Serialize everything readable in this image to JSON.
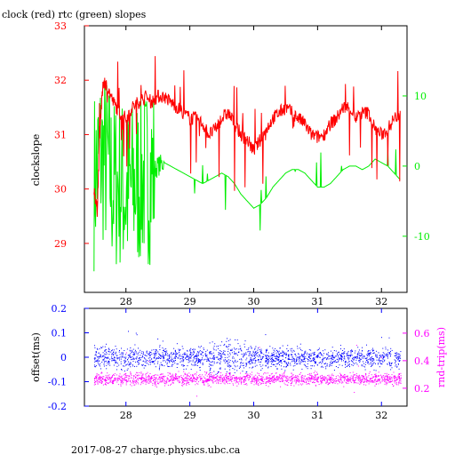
{
  "title": "clock (red) rtc (green) slopes",
  "footer": "2017-08-27 charge.physics.ubc.ca",
  "colors": {
    "red": "#ff0000",
    "green": "#00ee00",
    "blue": "#0000ff",
    "magenta": "#ff00ff",
    "axis": "#000000"
  },
  "chart_data": [
    {
      "type": "line",
      "title": "clock (red) rtc (green) slopes",
      "ylabel": "clockslope",
      "xlim": [
        27.35,
        32.4
      ],
      "ylim": [
        28.1,
        33
      ],
      "y2lim": [
        -18,
        20
      ],
      "x_ticks": [
        28,
        29,
        30,
        31,
        32
      ],
      "y_ticks": [
        29,
        30,
        31,
        32,
        33
      ],
      "y2_ticks": [
        -10,
        0,
        10
      ],
      "series": [
        {
          "name": "clock (red)",
          "axis": "left",
          "color": "#ff0000",
          "x": [
            27.5,
            27.55,
            27.6,
            27.65,
            27.7,
            27.8,
            27.9,
            28.0,
            28.1,
            28.2,
            28.3,
            28.4,
            28.5,
            28.6,
            28.7,
            28.8,
            28.9,
            29.0,
            29.1,
            29.2,
            29.3,
            29.4,
            29.5,
            29.6,
            29.7,
            29.8,
            29.9,
            30.0,
            30.1,
            30.2,
            30.3,
            30.4,
            30.5,
            30.6,
            30.7,
            30.8,
            30.9,
            31.0,
            31.1,
            31.2,
            31.3,
            31.4,
            31.5,
            31.6,
            31.7,
            31.8,
            31.9,
            32.0,
            32.1,
            32.2,
            32.3
          ],
          "y": [
            30.0,
            29.6,
            31.3,
            32.0,
            31.9,
            31.6,
            31.4,
            31.3,
            31.5,
            31.6,
            31.7,
            31.6,
            31.7,
            31.7,
            31.6,
            31.5,
            31.4,
            31.3,
            31.3,
            31.2,
            31.0,
            31.1,
            31.3,
            31.4,
            31.2,
            31.0,
            30.9,
            30.7,
            30.9,
            31.1,
            31.3,
            31.4,
            31.5,
            31.4,
            31.3,
            31.2,
            31.0,
            30.95,
            31.0,
            31.2,
            31.3,
            31.5,
            31.5,
            31.3,
            31.4,
            31.4,
            31.1,
            31.0,
            31.1,
            31.3,
            31.4
          ]
        },
        {
          "name": "rtc (green)",
          "axis": "right",
          "color": "#00ee00",
          "x": [
            27.5,
            27.6,
            27.7,
            27.8,
            27.9,
            28.0,
            28.1,
            28.2,
            28.3,
            28.4,
            28.5,
            28.6,
            28.7,
            28.8,
            28.9,
            29.0,
            29.1,
            29.2,
            29.3,
            29.4,
            29.5,
            29.6,
            29.7,
            29.8,
            29.9,
            30.0,
            30.1,
            30.2,
            30.3,
            30.4,
            30.5,
            30.6,
            30.7,
            30.8,
            30.9,
            31.0,
            31.1,
            31.2,
            31.3,
            31.4,
            31.5,
            31.6,
            31.7,
            31.8,
            31.9,
            32.0,
            32.1,
            32.2,
            32.3
          ],
          "y": [
            -2.0,
            1.5,
            0.5,
            -3.0,
            -2.0,
            -4.0,
            -3.0,
            -2.0,
            -1.5,
            -1.0,
            0.0,
            0.5,
            0.0,
            -0.5,
            -1.0,
            -1.5,
            -2.0,
            -2.5,
            -2.0,
            -1.5,
            -1.0,
            -1.5,
            -2.5,
            -4.0,
            -5.0,
            -6.0,
            -5.5,
            -4.5,
            -3.0,
            -2.0,
            -1.0,
            -0.5,
            -0.5,
            -1.0,
            -2.0,
            -3.0,
            -3.0,
            -2.5,
            -1.5,
            -0.5,
            0.0,
            0.0,
            -0.5,
            0.0,
            1.0,
            0.5,
            0.0,
            -1.0,
            -2.0
          ]
        }
      ]
    },
    {
      "type": "scatter",
      "ylabel": "offset(ms)",
      "y2label": "rnd-trip(ms)",
      "xlim": [
        27.35,
        32.4
      ],
      "ylim": [
        -0.2,
        0.2
      ],
      "y2lim": [
        0.07,
        0.78
      ],
      "x_ticks": [
        28,
        29,
        30,
        31,
        32
      ],
      "y_ticks": [
        -0.2,
        -0.1,
        0,
        0.1,
        0.2
      ],
      "y_tick_labels": [
        "-0.2",
        "-0.1",
        "0",
        "0.1",
        "0.2"
      ],
      "y2_ticks": [
        0.2,
        0.4,
        0.6
      ],
      "series": [
        {
          "name": "offset(ms)",
          "axis": "left",
          "color": "#0000ff",
          "x_range": [
            27.5,
            32.3
          ],
          "center": 0.0,
          "spread": 0.03
        },
        {
          "name": "rnd-trip(ms)",
          "axis": "right",
          "color": "#ff00ff",
          "x_range": [
            27.5,
            32.3
          ],
          "center": 0.27,
          "spread": 0.03
        }
      ]
    }
  ]
}
